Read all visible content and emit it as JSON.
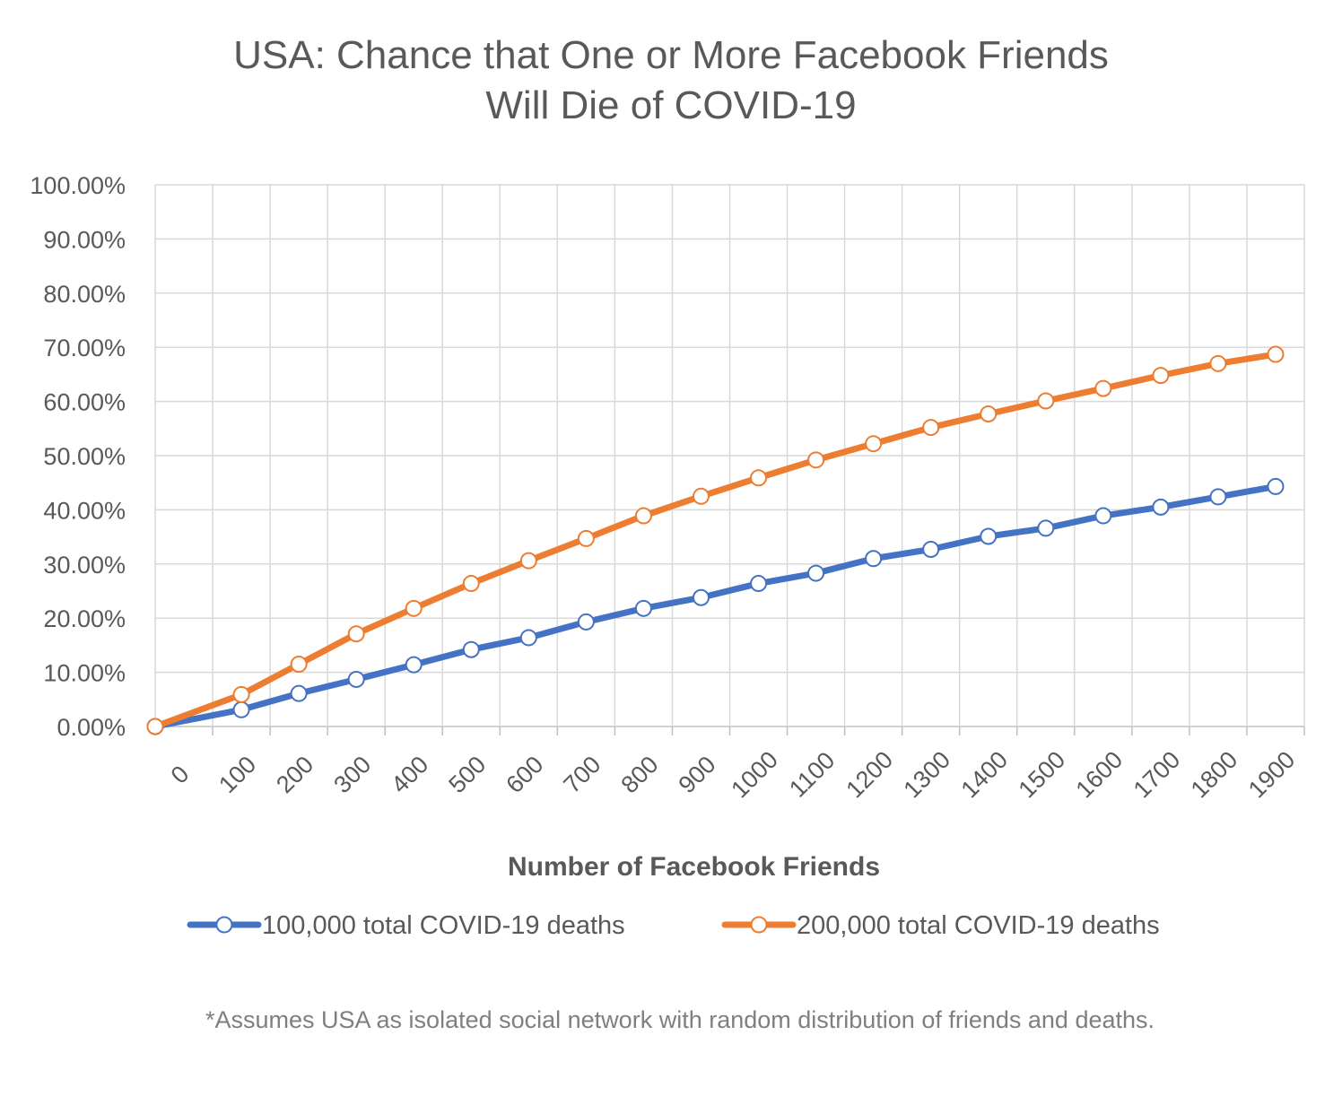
{
  "chart_data": {
    "type": "line",
    "title_line1": "USA: Chance that One or More Facebook Friends",
    "title_line2": "Will Die of COVID-19",
    "xlabel": "Number of Facebook Friends",
    "ylabel": "",
    "x_tick_labels": [
      "0",
      "100",
      "200",
      "300",
      "400",
      "500",
      "600",
      "700",
      "800",
      "900",
      "1000",
      "1100",
      "1200",
      "1300",
      "1400",
      "1500",
      "1600",
      "1700",
      "1800",
      "1900"
    ],
    "y_tick_labels": [
      "0.00%",
      "10.00%",
      "20.00%",
      "30.00%",
      "40.00%",
      "50.00%",
      "60.00%",
      "70.00%",
      "80.00%",
      "90.00%",
      "100.00%"
    ],
    "ylim": [
      0,
      100
    ],
    "x": [
      0,
      150,
      250,
      350,
      450,
      550,
      650,
      750,
      850,
      950,
      1050,
      1150,
      1250,
      1350,
      1450,
      1550,
      1650,
      1750,
      1850,
      1950
    ],
    "series": [
      {
        "name": "100,000 total COVID-19 deaths",
        "color": "#4472c4",
        "values": [
          0,
          3.1,
          6.1,
          8.7,
          11.4,
          14.2,
          16.4,
          19.3,
          21.8,
          23.8,
          26.4,
          28.3,
          31.0,
          32.7,
          35.1,
          36.6,
          38.9,
          40.5,
          42.4,
          44.3
        ]
      },
      {
        "name": "200,000 total COVID-19 deaths",
        "color": "#ed7d31",
        "values": [
          0,
          5.9,
          11.5,
          17.1,
          21.8,
          26.4,
          30.6,
          34.7,
          38.9,
          42.5,
          45.9,
          49.2,
          52.2,
          55.2,
          57.7,
          60.1,
          62.4,
          64.8,
          67.0,
          68.7
        ]
      }
    ],
    "grid": true,
    "legend_position": "bottom"
  },
  "footnote": "*Assumes USA as isolated social network with random distribution of friends and deaths."
}
